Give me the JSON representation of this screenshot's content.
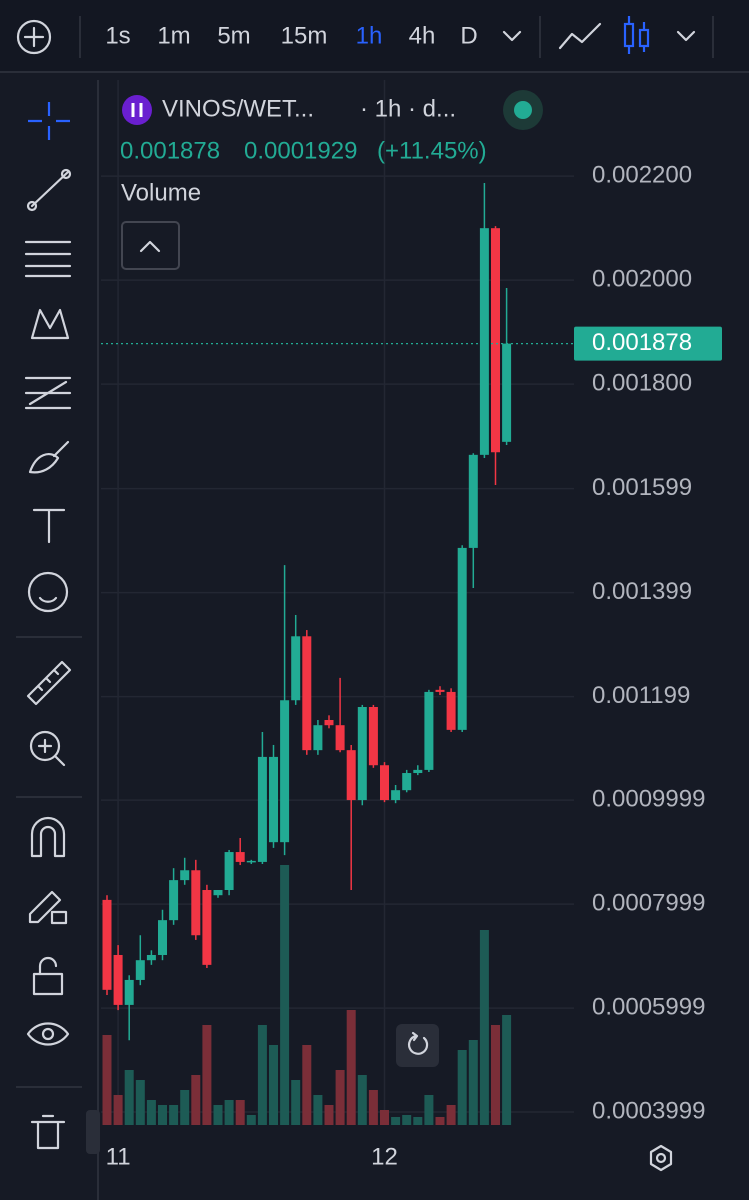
{
  "toolbar": {
    "intervals": [
      "1s",
      "1m",
      "5m",
      "15m",
      "1h",
      "4h",
      "D"
    ],
    "active": 4
  },
  "header": {
    "symbol": "VINOS/WET...",
    "meta": "· 1h · d...",
    "price": "0.001878",
    "change": "0.0001929",
    "change_pct": "(+11.45%)",
    "indicator": "Volume"
  },
  "chart_data": {
    "type": "candlestick",
    "categories": [
      null,
      "11",
      null,
      null,
      null,
      null,
      null,
      null,
      null,
      null,
      null,
      null,
      null,
      null,
      null,
      null,
      null,
      null,
      null,
      null,
      null,
      null,
      null,
      null,
      null,
      "12",
      null,
      null,
      null,
      null,
      null,
      null,
      null,
      null,
      null,
      null,
      null
    ],
    "candles": [
      [
        0.000808,
        0.000817,
        0.000625,
        0.000635
      ],
      [
        0.000702,
        0.000721,
        0.000596,
        0.000606
      ],
      [
        0.000606,
        0.000663,
        0.000538,
        0.000654
      ],
      [
        0.000654,
        0.00074,
        0.000644,
        0.000692
      ],
      [
        0.000692,
        0.000711,
        0.000683,
        0.000702
      ],
      [
        0.000702,
        0.000789,
        0.000692,
        0.000769
      ],
      [
        0.000769,
        0.000869,
        0.00076,
        0.000846
      ],
      [
        0.000846,
        0.000889,
        0.000837,
        0.000865
      ],
      [
        0.000865,
        0.000885,
        0.000731,
        0.00074
      ],
      [
        0.000827,
        0.000837,
        0.000677,
        0.000683
      ],
      [
        0.000817,
        0.000827,
        0.000812,
        0.000827
      ],
      [
        0.000827,
        0.000904,
        0.000817,
        0.0009
      ],
      [
        0.0009,
        0.000927,
        0.000875,
        0.000881
      ],
      [
        0.000881,
        0.000885,
        0.000877,
        0.000883
      ],
      [
        0.000881,
        0.001131,
        0.000877,
        0.001083
      ],
      [
        0.000919,
        0.001106,
        0.000908,
        0.001083
      ],
      [
        0.000919,
        0.001452,
        0.000894,
        0.001192
      ],
      [
        0.001192,
        0.001356,
        0.001183,
        0.001315
      ],
      [
        0.001315,
        0.001327,
        0.001087,
        0.001096
      ],
      [
        0.001096,
        0.001154,
        0.001087,
        0.001144
      ],
      [
        0.001154,
        0.001163,
        0.001138,
        0.001144
      ],
      [
        0.001144,
        0.001235,
        0.001092,
        0.001096
      ],
      [
        0.001096,
        0.001106,
        0.000827,
        0.001
      ],
      [
        0.001,
        0.001183,
        0.00099,
        0.001179
      ],
      [
        0.001179,
        0.001183,
        0.001062,
        0.001067
      ],
      [
        0.001067,
        0.001073,
        0.000996,
        0.001
      ],
      [
        0.001,
        0.001029,
        0.000994,
        0.001019
      ],
      [
        0.001019,
        0.001058,
        0.001015,
        0.001052
      ],
      [
        0.001052,
        0.001067,
        0.001048,
        0.001058
      ],
      [
        0.001058,
        0.001212,
        0.001054,
        0.001208
      ],
      [
        0.001212,
        0.001219,
        0.001202,
        0.001208
      ],
      [
        0.001208,
        0.001215,
        0.001131,
        0.001135
      ],
      [
        0.001135,
        0.00149,
        0.001131,
        0.001485
      ],
      [
        0.001485,
        0.001667,
        0.001408,
        0.001664
      ],
      [
        0.001664,
        0.002187,
        0.001658,
        0.0021
      ],
      [
        0.0021,
        0.002104,
        0.001606,
        0.001669
      ],
      [
        0.001689,
        0.001985,
        0.001683,
        0.001878
      ]
    ],
    "volume": [
      90,
      30,
      55,
      45,
      25,
      20,
      20,
      35,
      50,
      100,
      20,
      25,
      25,
      10,
      100,
      80,
      260,
      45,
      80,
      30,
      20,
      55,
      115,
      50,
      35,
      15,
      8,
      10,
      8,
      30,
      8,
      20,
      75,
      85,
      195,
      100,
      110
    ],
    "last_price": 0.001878,
    "last_price_label": "0.001878",
    "up_color": "#22ab94",
    "down_color": "#f23645",
    "volume_up_color": "#1d5b55",
    "volume_down_color": "#7b2e38",
    "ylim": [
      0.000375,
      0.002385
    ],
    "yticks": [
      {
        "value": 0.0022,
        "label": "0.002200"
      },
      {
        "value": 0.002,
        "label": "0.002000"
      },
      {
        "value": 0.0018,
        "label": "0.001800"
      },
      0.001599,
      0.001399,
      0.001199,
      0.0009999,
      0.0007999,
      0.0005999,
      0.0003999
    ],
    "grid": true
  }
}
